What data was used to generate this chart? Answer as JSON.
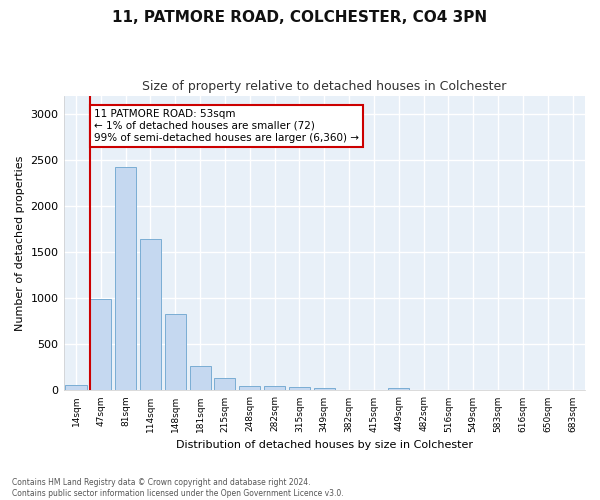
{
  "title": "11, PATMORE ROAD, COLCHESTER, CO4 3PN",
  "subtitle": "Size of property relative to detached houses in Colchester",
  "xlabel": "Distribution of detached houses by size in Colchester",
  "ylabel": "Number of detached properties",
  "bar_color": "#c5d8f0",
  "bar_edge_color": "#7aadd4",
  "fig_background_color": "#ffffff",
  "ax_background_color": "#e8f0f8",
  "grid_color": "#ffffff",
  "annotation_box_color": "#cc0000",
  "vline_color": "#cc0000",
  "annotation_text": "11 PATMORE ROAD: 53sqm\n← 1% of detached houses are smaller (72)\n99% of semi-detached houses are larger (6,360) →",
  "categories": [
    "14sqm",
    "47sqm",
    "81sqm",
    "114sqm",
    "148sqm",
    "181sqm",
    "215sqm",
    "248sqm",
    "282sqm",
    "315sqm",
    "349sqm",
    "382sqm",
    "415sqm",
    "449sqm",
    "482sqm",
    "516sqm",
    "549sqm",
    "583sqm",
    "616sqm",
    "650sqm",
    "683sqm"
  ],
  "values": [
    55,
    990,
    2430,
    1640,
    830,
    270,
    140,
    45,
    45,
    40,
    25,
    0,
    0,
    30,
    0,
    0,
    0,
    0,
    0,
    0,
    0
  ],
  "ylim": [
    0,
    3200
  ],
  "yticks": [
    0,
    500,
    1000,
    1500,
    2000,
    2500,
    3000
  ],
  "footer": "Contains HM Land Registry data © Crown copyright and database right 2024.\nContains public sector information licensed under the Open Government Licence v3.0.",
  "figsize": [
    6.0,
    5.0
  ],
  "dpi": 100
}
